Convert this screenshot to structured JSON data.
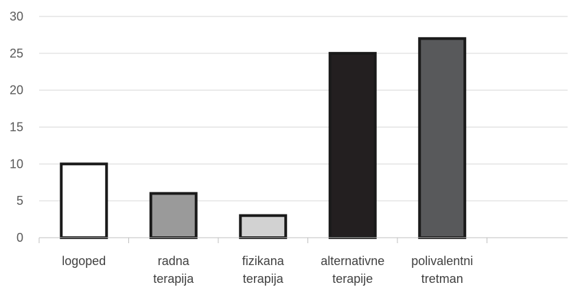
{
  "chart_data": {
    "type": "bar",
    "title": "",
    "xlabel": "",
    "ylabel": "",
    "ylim": [
      0,
      30
    ],
    "yticks": [
      0,
      5,
      10,
      15,
      20,
      25,
      30
    ],
    "grid": true,
    "legend": "none",
    "categories": [
      [
        "logoped"
      ],
      [
        "radna",
        "terapija"
      ],
      [
        "fizikana",
        "terapija"
      ],
      [
        "alternativne",
        "terapije"
      ],
      [
        "polivalentni",
        "tretman"
      ]
    ],
    "values": [
      10,
      6,
      3,
      25,
      27
    ],
    "colors": [
      "#ffffff",
      "#9a9a9a",
      "#d2d2d2",
      "#231f20",
      "#58595b"
    ],
    "outline_color": "#1a1a1a"
  }
}
